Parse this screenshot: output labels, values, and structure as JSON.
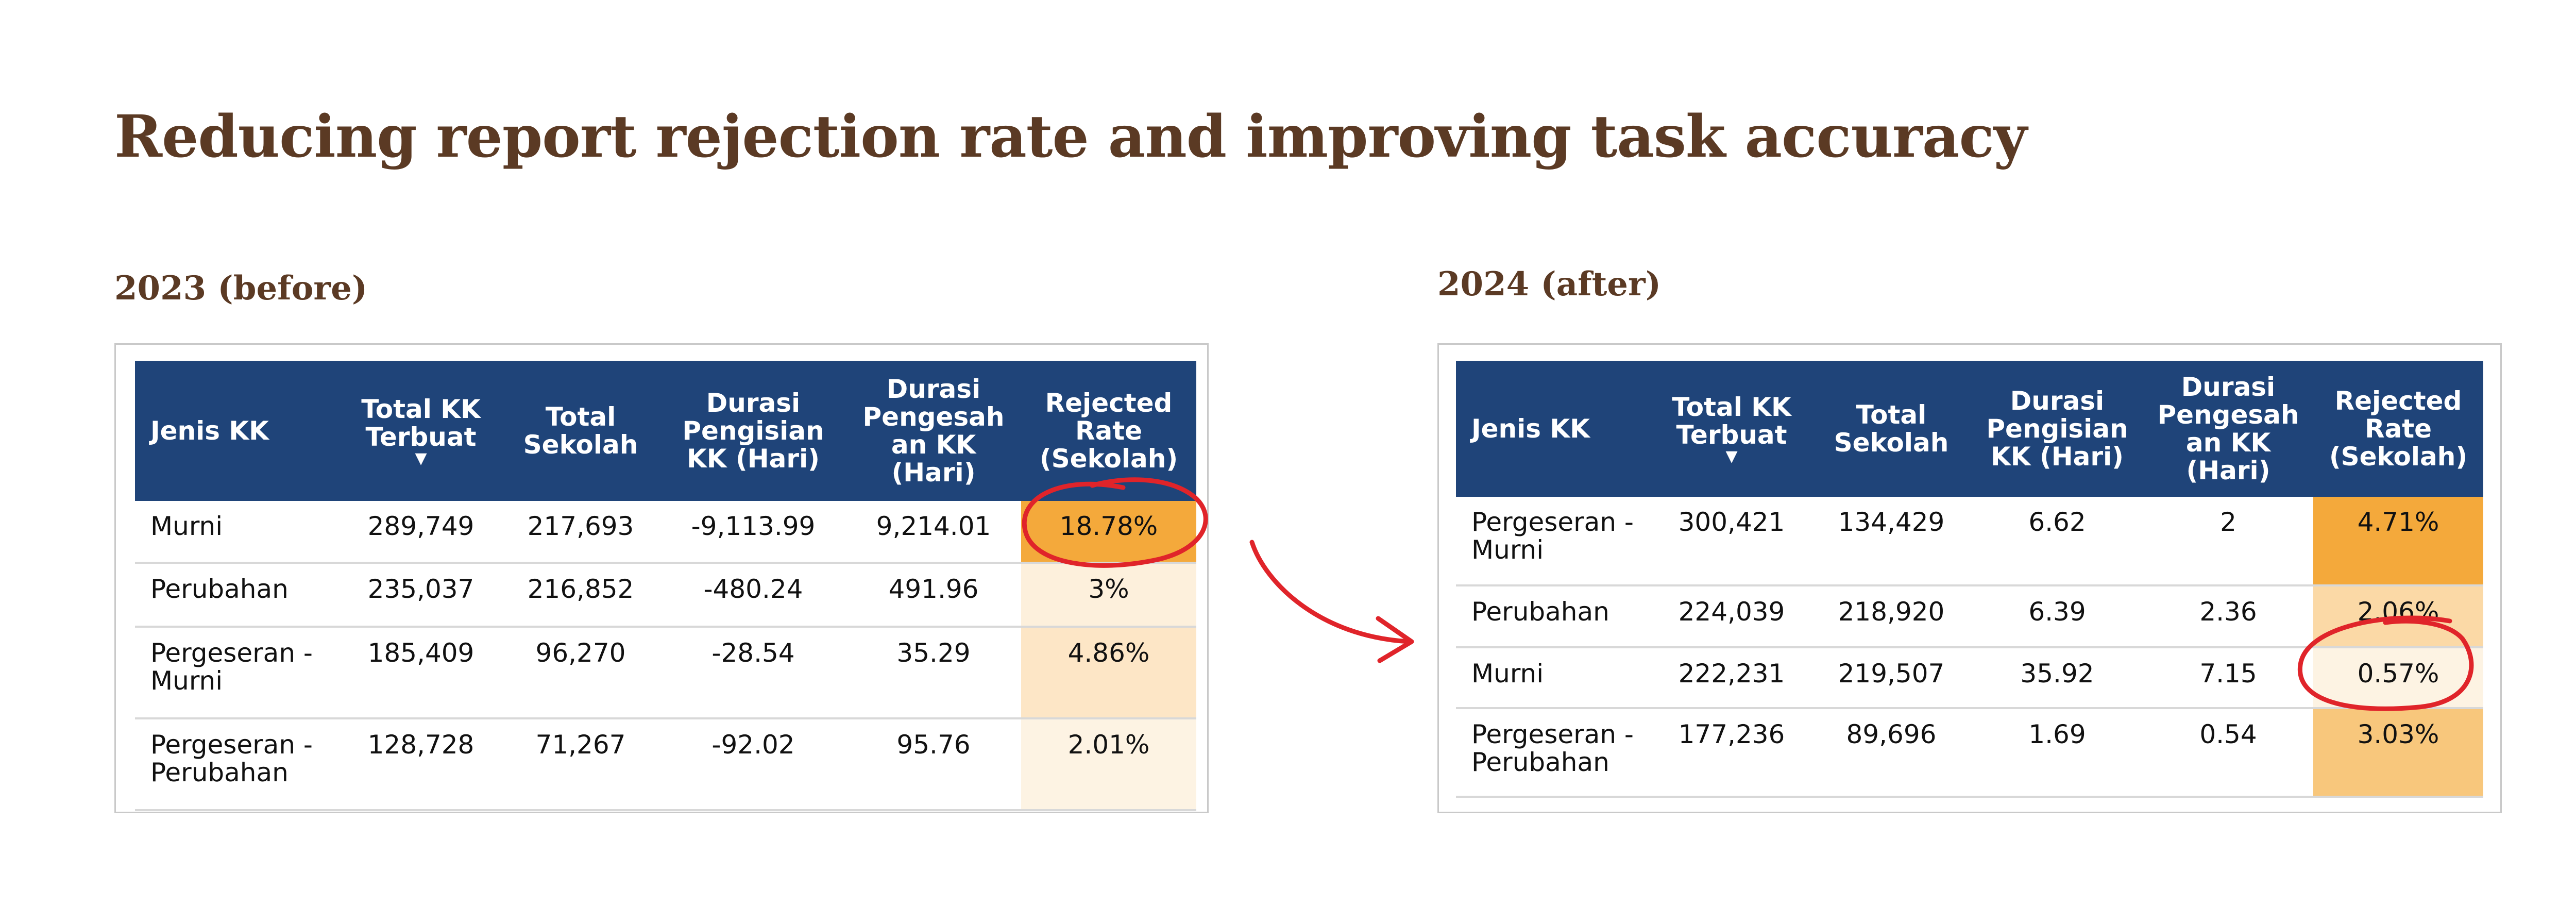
{
  "title": "Reducing report rejection rate and improving task accuracy",
  "before": {
    "label": "2023 (before)",
    "headers": {
      "jenis": "Jenis KK",
      "total_kk": "Total KK Terbuat",
      "total_sekolah": "Total Sekolah",
      "durasi_pengisian": "Durasi Pengisian KK (Hari)",
      "durasi_pengesahan": "Durasi Pengesah an KK (Hari)",
      "rejected": "Rejected Rate (Sekolah)"
    },
    "rows": [
      {
        "jenis": "Murni",
        "total_kk": "289,749",
        "total_sekolah": "217,693",
        "durasi_pengisian": "-9,113.99",
        "durasi_pengesahan": "9,214.01",
        "rejected": "18.78%",
        "rate_color": "#f4a93b"
      },
      {
        "jenis": "Perubahan",
        "total_kk": "235,037",
        "total_sekolah": "216,852",
        "durasi_pengisian": "-480.24",
        "durasi_pengesahan": "491.96",
        "rejected": "3%",
        "rate_color": "#fdf0dc"
      },
      {
        "jenis": "Pergeseran -Murni",
        "total_kk": "185,409",
        "total_sekolah": "96,270",
        "durasi_pengisian": "-28.54",
        "durasi_pengesahan": "35.29",
        "rejected": "4.86%",
        "rate_color": "#fde6c6"
      },
      {
        "jenis": "Pergeseran -Perubahan",
        "total_kk": "128,728",
        "total_sekolah": "71,267",
        "durasi_pengisian": "-92.02",
        "durasi_pengesahan": "95.76",
        "rejected": "2.01%",
        "rate_color": "#fdf3e3"
      }
    ]
  },
  "after": {
    "label": "2024 (after)",
    "headers": {
      "jenis": "Jenis KK",
      "total_kk": "Total KK Terbuat",
      "total_sekolah": "Total Sekolah",
      "durasi_pengisian": "Durasi Pengisian KK (Hari)",
      "durasi_pengesahan": "Durasi Pengesah an KK (Hari)",
      "rejected": "Rejected Rate (Sekolah)"
    },
    "rows": [
      {
        "jenis": "Pergeseran -Murni",
        "total_kk": "300,421",
        "total_sekolah": "134,429",
        "durasi_pengisian": "6.62",
        "durasi_pengesahan": "2",
        "rejected": "4.71%",
        "rate_color": "#f4a93b"
      },
      {
        "jenis": "Perubahan",
        "total_kk": "224,039",
        "total_sekolah": "218,920",
        "durasi_pengisian": "6.39",
        "durasi_pengesahan": "2.36",
        "rejected": "2.06%",
        "rate_color": "#fbd9a6"
      },
      {
        "jenis": "Murni",
        "total_kk": "222,231",
        "total_sekolah": "219,507",
        "durasi_pengisian": "35.92",
        "durasi_pengesahan": "7.15",
        "rejected": "0.57%",
        "rate_color": "#fdf3e3"
      },
      {
        "jenis": "Pergeseran -Perubahan",
        "total_kk": "177,236",
        "total_sekolah": "89,696",
        "durasi_pengisian": "1.69",
        "durasi_pengesahan": "0.54",
        "rejected": "3.03%",
        "rate_color": "#f8c77c"
      }
    ]
  },
  "colors": {
    "header_bg": "#1f4479",
    "title": "#5b3a24",
    "annotation": "#e0242a"
  }
}
